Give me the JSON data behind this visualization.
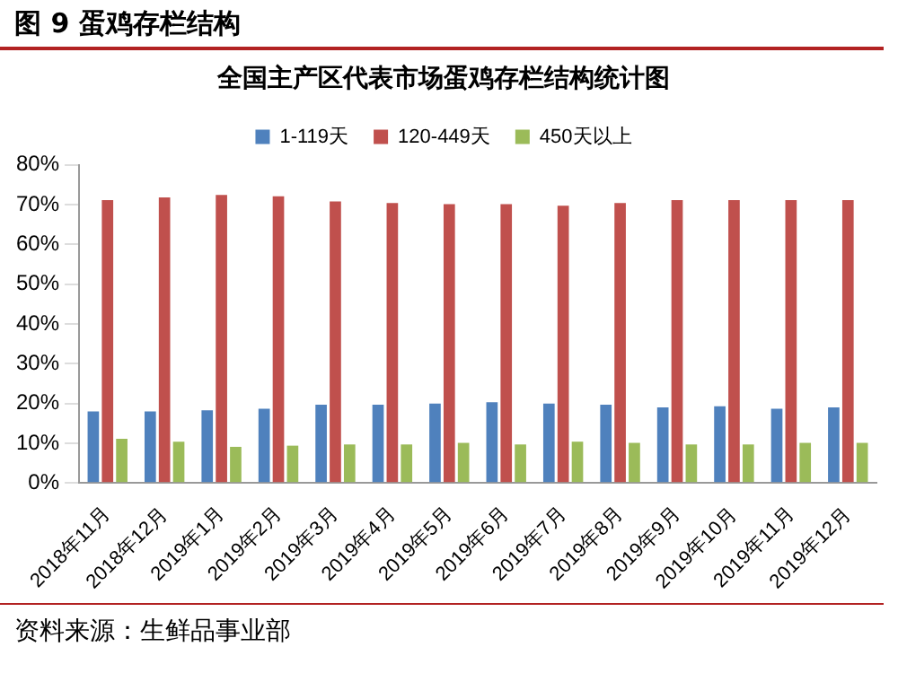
{
  "chart_data": {
    "type": "bar",
    "title": "图 9  蛋鸡存栏结构",
    "subtitle": "全国主产区代表市场蛋鸡存栏结构统计图",
    "categories": [
      "2018年11月",
      "2018年12月",
      "2019年1月",
      "2019年2月",
      "2019年3月",
      "2019年4月",
      "2019年5月",
      "2019年6月",
      "2019年7月",
      "2019年8月",
      "2019年9月",
      "2019年10月",
      "2019年11月",
      "2019年12月"
    ],
    "series": [
      {
        "name": "1-119天",
        "color": "#4f81bd",
        "values": [
          18.0,
          18.0,
          18.3,
          18.7,
          19.7,
          19.7,
          20.0,
          20.3,
          20.0,
          19.7,
          19.0,
          19.3,
          18.7,
          19.0
        ]
      },
      {
        "name": "120-449天",
        "color": "#c0504d",
        "values": [
          71.1,
          71.8,
          72.4,
          72.1,
          70.8,
          70.4,
          70.1,
          70.1,
          69.7,
          70.4,
          71.1,
          71.1,
          71.1,
          71.1
        ]
      },
      {
        "name": "450天以上",
        "color": "#9bbb59",
        "values": [
          11.1,
          10.4,
          9.1,
          9.4,
          9.7,
          9.7,
          10.1,
          9.7,
          10.4,
          10.1,
          9.7,
          9.7,
          10.1,
          10.1
        ]
      }
    ],
    "ylim": [
      0,
      80
    ],
    "yticks": [
      {
        "value": 0,
        "label": "0%"
      },
      {
        "value": 10,
        "label": "10%"
      },
      {
        "value": 20,
        "label": "20%"
      },
      {
        "value": 30,
        "label": "30%"
      },
      {
        "value": 40,
        "label": "40%"
      },
      {
        "value": 50,
        "label": "50%"
      },
      {
        "value": 60,
        "label": "60%"
      },
      {
        "value": 70,
        "label": "70%"
      },
      {
        "value": 80,
        "label": "80%"
      }
    ],
    "legend": "top",
    "grid": false,
    "annotations": [
      "资料来源：生鲜品事业部"
    ]
  }
}
